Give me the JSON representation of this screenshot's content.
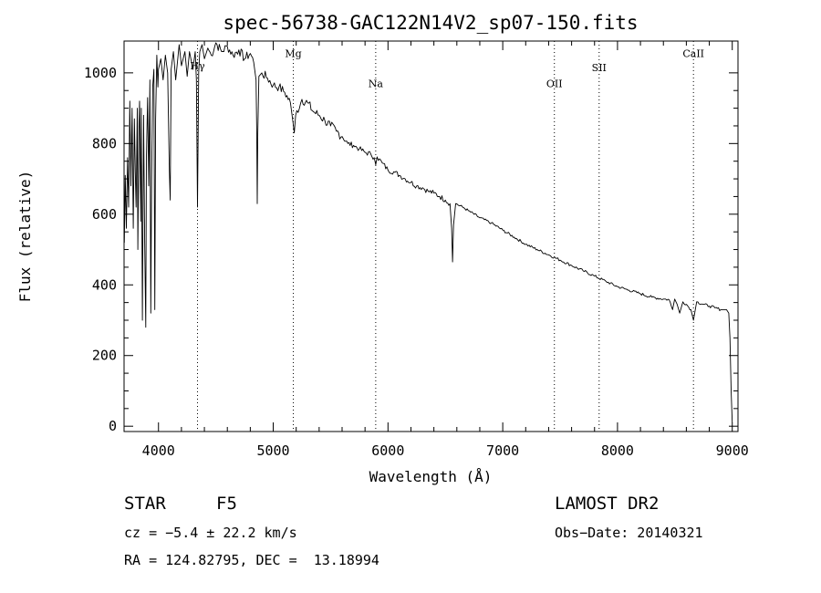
{
  "chart_data": {
    "type": "line",
    "title": "spec-56738-GAC122N14V2_sp07-150.fits",
    "xlabel": "Wavelength (Å)",
    "ylabel": "Flux (relative)",
    "xlim": [
      3700,
      9050
    ],
    "ylim": [
      -15,
      1090
    ],
    "xticks": [
      4000,
      5000,
      6000,
      7000,
      8000,
      9000
    ],
    "yticks": [
      0,
      200,
      400,
      600,
      800,
      1000
    ],
    "grid": false,
    "lines": [
      {
        "label": "Hγ",
        "x": 4340,
        "y": 1010
      },
      {
        "label": "Mg",
        "x": 5175,
        "y": 1045
      },
      {
        "label": "Na",
        "x": 5893,
        "y": 960
      },
      {
        "label": "OII",
        "x": 7450,
        "y": 960
      },
      {
        "label": "SII",
        "x": 7840,
        "y": 1005
      },
      {
        "label": "CaII",
        "x": 8662,
        "y": 1045
      }
    ],
    "series": [
      {
        "name": "flux",
        "x": [
          3700,
          3702,
          3710,
          3720,
          3730,
          3740,
          3750,
          3760,
          3770,
          3780,
          3790,
          3798,
          3805,
          3815,
          3820,
          3830,
          3835,
          3845,
          3850,
          3860,
          3870,
          3880,
          3889,
          3895,
          3905,
          3915,
          3925,
          3933,
          3940,
          3950,
          3960,
          3968,
          3975,
          3985,
          3995,
          4000,
          4020,
          4040,
          4060,
          4080,
          4095,
          4102,
          4110,
          4130,
          4150,
          4180,
          4200,
          4230,
          4250,
          4270,
          4300,
          4320,
          4330,
          4340,
          4350,
          4360,
          4380,
          4400,
          4430,
          4460,
          4500,
          4550,
          4600,
          4650,
          4700,
          4750,
          4800,
          4830,
          4850,
          4857,
          4861,
          4865,
          4875,
          4900,
          4950,
          5000,
          5050,
          5100,
          5150,
          5172,
          5183,
          5195,
          5250,
          5300,
          5350,
          5400,
          5450,
          5500,
          5550,
          5600,
          5650,
          5700,
          5750,
          5800,
          5850,
          5880,
          5893,
          5905,
          5950,
          6000,
          6050,
          6100,
          6150,
          6200,
          6250,
          6300,
          6350,
          6400,
          6450,
          6500,
          6540,
          6555,
          6563,
          6571,
          6590,
          6650,
          6700,
          6800,
          6900,
          7000,
          7100,
          7200,
          7300,
          7400,
          7500,
          7600,
          7700,
          7800,
          7900,
          8000,
          8100,
          8200,
          8300,
          8400,
          8450,
          8480,
          8498,
          8520,
          8542,
          8570,
          8600,
          8640,
          8662,
          8690,
          8750,
          8800,
          8850,
          8900,
          8950,
          8970,
          8980,
          8990,
          9000
        ],
        "y": [
          650,
          520,
          710,
          560,
          760,
          620,
          920,
          680,
          900,
          560,
          870,
          720,
          620,
          900,
          500,
          860,
          920,
          580,
          900,
          300,
          880,
          520,
          280,
          760,
          930,
          680,
          980,
          320,
          700,
          960,
          1010,
          330,
          870,
          1050,
          960,
          1010,
          1040,
          980,
          1050,
          1000,
          720,
          640,
          1010,
          1060,
          980,
          1080,
          1020,
          1060,
          990,
          1060,
          1010,
          1060,
          980,
          620,
          1000,
          1060,
          1080,
          1040,
          1070,
          1050,
          1085,
          1060,
          1075,
          1050,
          1065,
          1040,
          1055,
          1030,
          980,
          820,
          630,
          830,
          990,
          1000,
          985,
          965,
          960,
          945,
          915,
          860,
          830,
          880,
          925,
          915,
          890,
          880,
          865,
          850,
          835,
          820,
          800,
          795,
          785,
          775,
          770,
          760,
          740,
          762,
          745,
          725,
          720,
          710,
          700,
          690,
          680,
          675,
          665,
          660,
          650,
          640,
          630,
          560,
          465,
          570,
          630,
          620,
          610,
          590,
          575,
          555,
          535,
          515,
          500,
          485,
          470,
          455,
          440,
          425,
          410,
          395,
          385,
          375,
          365,
          360,
          358,
          330,
          360,
          345,
          320,
          352,
          345,
          330,
          300,
          352,
          345,
          340,
          335,
          330,
          330,
          320,
          250,
          100,
          10
        ]
      }
    ]
  },
  "footer": {
    "object_class": "STAR",
    "subclass": "F5",
    "survey": "LAMOST DR2",
    "cz": "cz = −5.4 ± 22.2 km/s",
    "obs_date": "Obs−Date: 20140321",
    "coords": "RA = 124.82795, DEC =  13.18994"
  }
}
